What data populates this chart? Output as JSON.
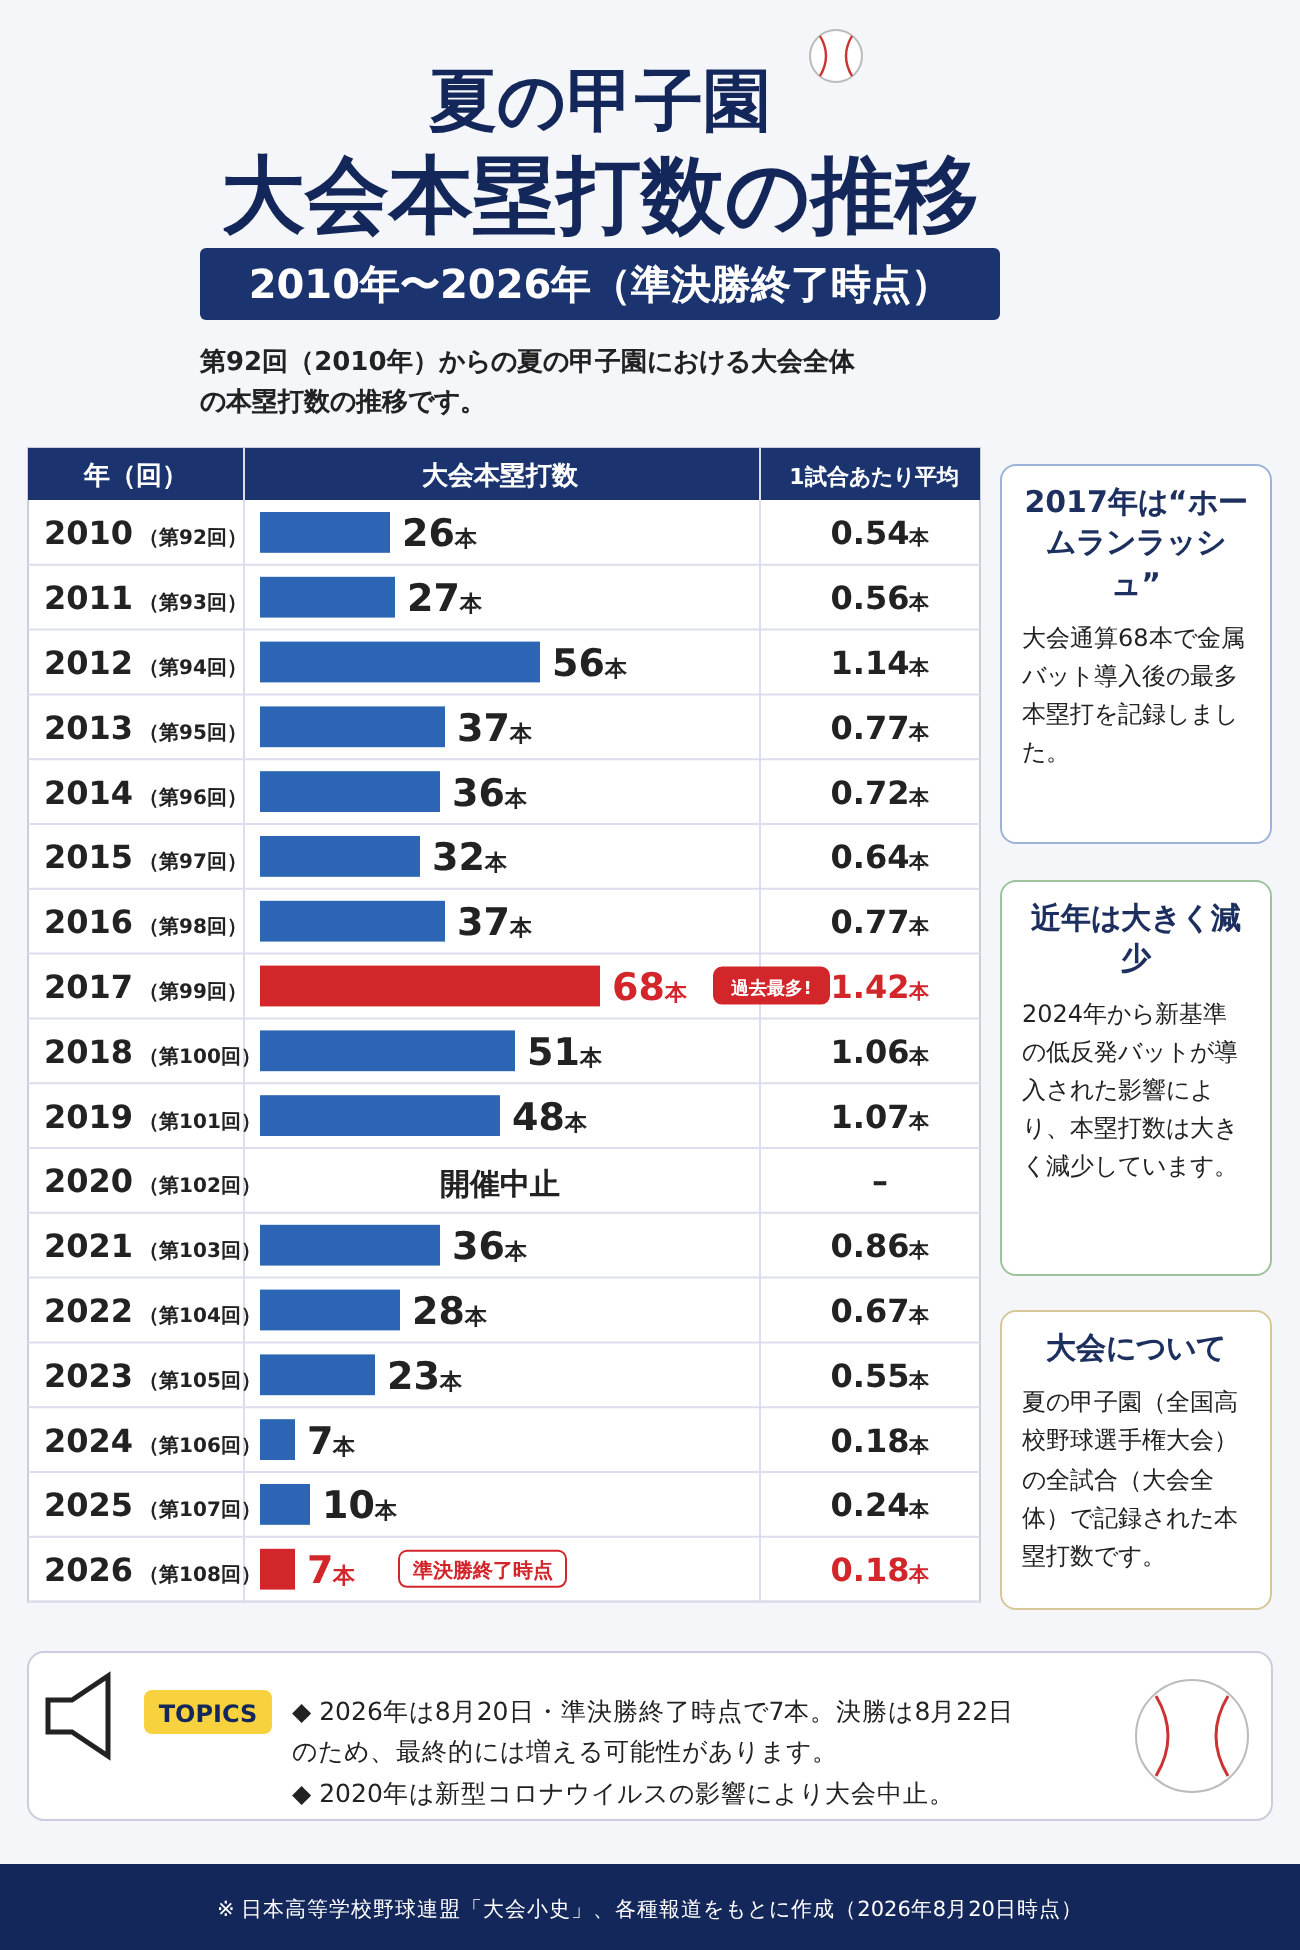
{
  "chart_data": {
    "type": "bar",
    "orientation": "horizontal",
    "title": "夏の甲子園大会本塁打数の推移",
    "subtitle": "2010年〜2026年（準決勝終了時点）",
    "ylabel": "年（回）",
    "xlabel": "大会本塁打数",
    "categories": [
      "2010（第92回）",
      "2011（第93回）",
      "2012（第94回）",
      "2013（第95回）",
      "2014（第96回）",
      "2015（第97回）",
      "2016（第98回）",
      "2017（第99回）",
      "2018（第100回）",
      "2019（第101回）",
      "2020（第102回）",
      "2021（第103回）",
      "2022（第104回）",
      "2023（第105回）",
      "2024（第106回）",
      "2025（第107回）",
      "2026（第108回）"
    ],
    "values": [
      26,
      27,
      56,
      37,
      36,
      32,
      37,
      68,
      51,
      48,
      null,
      36,
      28,
      23,
      7,
      10,
      7
    ],
    "value_labels": [
      "26本",
      "27本",
      "56本",
      "37本",
      "36本",
      "32本",
      "37本",
      "68本",
      "51本",
      "48本",
      "開催中止",
      "36本",
      "28本",
      "23本",
      "7本",
      "10本",
      "7本"
    ],
    "colors": [
      "#2b65b3",
      "#2b65b3",
      "#2b65b3",
      "#2b65b3",
      "#2b65b3",
      "#2b65b3",
      "#2b65b3",
      "#d3262b",
      "#2b65b3",
      "#2b65b3",
      "#2b65b3",
      "#2b65b3",
      "#2b65b3",
      "#2b65b3",
      "#2b65b3",
      "#2b65b3",
      "#d3262b"
    ],
    "annotations": [
      "第92回（2010年）からの夏の甲子園における大会全体の本塁打数の推移です。",
      "1試合あたり平均",
      "0.54本",
      "0.56本",
      "1.14本",
      "0.77本",
      "0.72本",
      "0.64本",
      "0.77本",
      "1.42本",
      "1.06本",
      "1.07本",
      "–",
      "0.86本",
      "0.67本",
      "0.55本",
      "0.18本",
      "0.24本",
      "0.18本",
      "過去最多!",
      "準決勝終了時点",
      "2017年は“ホームランラッシュ”",
      "大会通算68本で金属バット導入後の最多本塁打を記録しました。",
      "近年は大きく減少",
      "2024年から新基準の低反発バットが導入された影響により、本塁打数は大きく減少しています。",
      "大会について",
      "夏の甲子園（全国高校野球選手権大会）の全試合（大会全体）で記録された本塁打数です。",
      "TOPICS",
      "◆ 2026年は8月20日・準決勝終了時点で7本。決勝は8月22日のため、最終的には増える可能性があります。",
      "◆ 2020年は新型コロナウイルスの影響により大会中止。",
      "※ 日本高等学校野球連盟「大会小史」、各種報道をもとに作成（2026年8月20日時点）"
    ]
  }
}
